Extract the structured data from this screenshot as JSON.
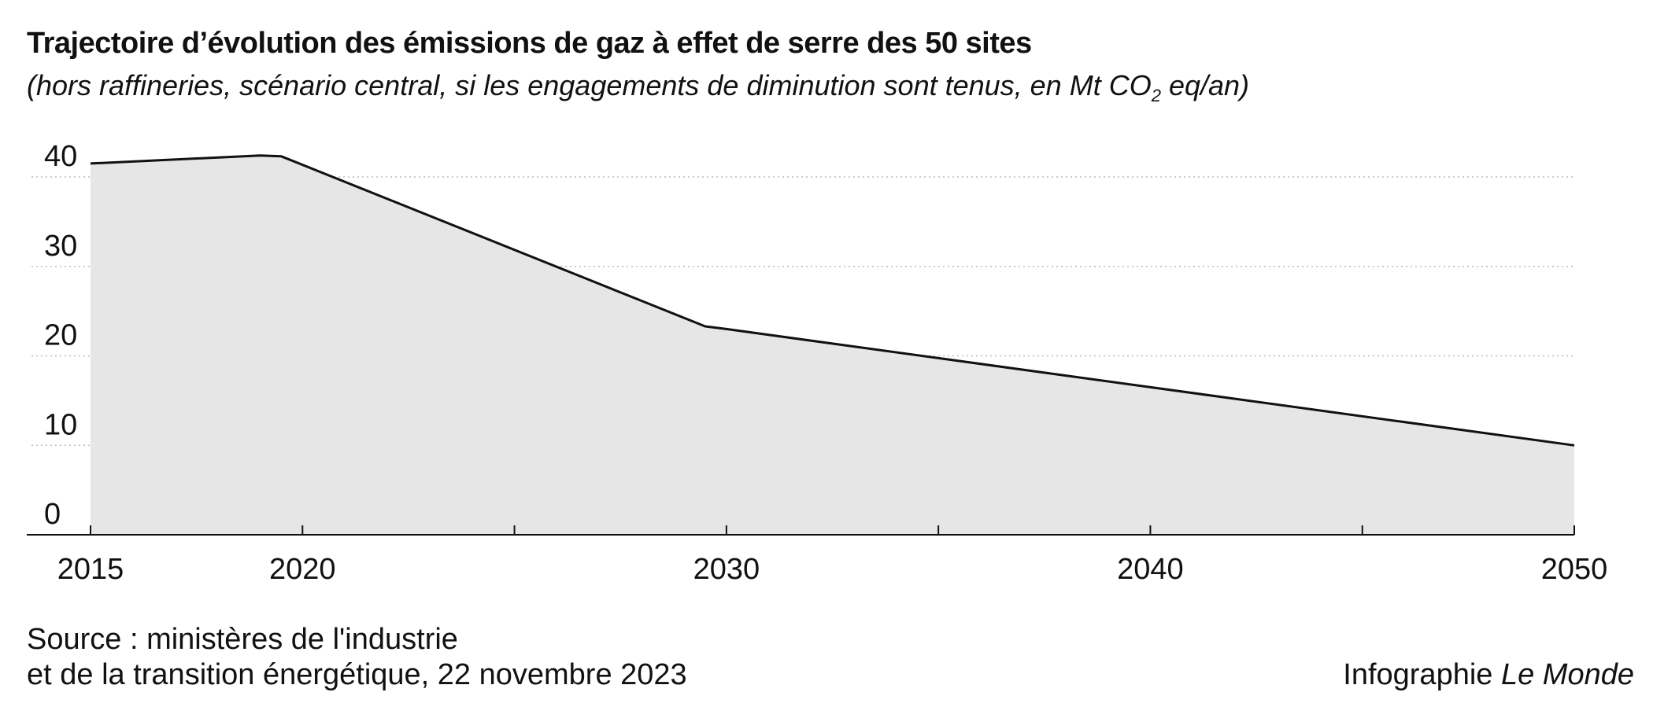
{
  "header": {
    "title": "Trajectoire d’évolution des émissions de gaz à effet de serre des 50 sites",
    "subtitle_before": "(hors raffineries, scénario central, si les engagements de diminution sont tenus, en Mt CO",
    "subtitle_sub": "2",
    "subtitle_after": " eq/an)"
  },
  "chart_data": {
    "type": "area",
    "title": "Trajectoire d’évolution des émissions de gaz à effet de serre des 50 sites",
    "subtitle": "(hors raffineries, scénario central, si les engagements de diminution sont tenus, en Mt CO2 eq/an)",
    "xlabel": "",
    "ylabel": "",
    "x": [
      2015,
      2019,
      2019.5,
      2029.5,
      2030,
      2050
    ],
    "values": [
      41.5,
      42.4,
      42.3,
      23.3,
      23,
      10
    ],
    "xlim": [
      2015,
      2050
    ],
    "ylim": [
      0,
      40
    ],
    "x_ticks": [
      "2015",
      "2020",
      "2030",
      "2040",
      "2050"
    ],
    "y_ticks": [
      "0",
      "10",
      "20",
      "30",
      "40"
    ],
    "grid": "horizontal dotted",
    "colors": {
      "fill": "#e6e6e6",
      "line": "#111111",
      "grid": "#bbbbbb",
      "axis": "#111111"
    }
  },
  "footer": {
    "source_line1": "Source : ministères de l'industrie",
    "source_line2": "et de la transition énergétique, 22 novembre 2023",
    "credit_prefix": "Infographie ",
    "credit_brand": "Le Monde"
  }
}
